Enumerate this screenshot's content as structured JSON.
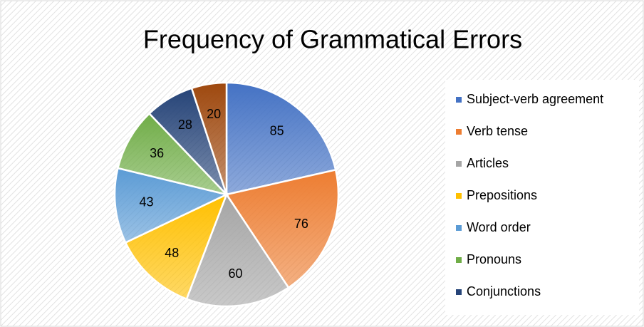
{
  "chart_data": {
    "type": "pie",
    "title": "Frequency of Grammatical Errors",
    "categories": [
      "Subject-verb agreement",
      "Verb tense",
      "Articles",
      "Prepositions",
      "Word order",
      "Pronouns",
      "Conjunctions",
      null
    ],
    "values": [
      85,
      76,
      60,
      48,
      43,
      36,
      28,
      20
    ],
    "colors": [
      "#4472c4",
      "#ed7d31",
      "#a5a5a5",
      "#ffc000",
      "#5b9bd5",
      "#70ad47",
      "#264478",
      "#9e480e"
    ],
    "legend": "right"
  }
}
